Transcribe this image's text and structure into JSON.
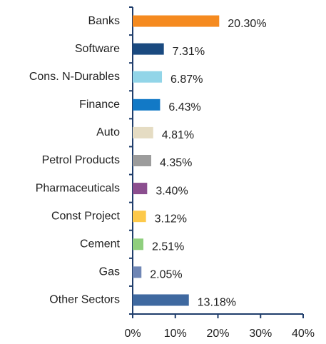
{
  "chart_data": {
    "type": "barh",
    "categories": [
      "Banks",
      "Software",
      "Cons. N-Durables",
      "Finance",
      "Auto",
      "Petrol Products",
      "Pharmaceuticals",
      "Const Project",
      "Cement",
      "Gas",
      "Other Sectors"
    ],
    "values": [
      20.3,
      7.31,
      6.87,
      6.43,
      4.81,
      4.35,
      3.4,
      3.12,
      2.51,
      2.05,
      13.18
    ],
    "value_labels": [
      "20.30%",
      "7.31%",
      "6.87%",
      "6.43%",
      "4.81%",
      "4.35%",
      "3.40%",
      "3.12%",
      "2.51%",
      "2.05%",
      "13.18%"
    ],
    "colors": [
      "#f58a1f",
      "#1a4a80",
      "#92d5e8",
      "#1279c6",
      "#e5dcc3",
      "#9c9c9c",
      "#8b4e8f",
      "#fdc94a",
      "#8fcf7e",
      "#6f86b5",
      "#3f69a0"
    ],
    "xlim": [
      0,
      40
    ],
    "xticks": [
      {
        "value": 0,
        "label": "0%"
      },
      {
        "value": 10,
        "label": "10%"
      },
      {
        "value": 20,
        "label": "20%"
      },
      {
        "value": 30,
        "label": "30%"
      },
      {
        "value": 40,
        "label": "40%"
      }
    ]
  }
}
